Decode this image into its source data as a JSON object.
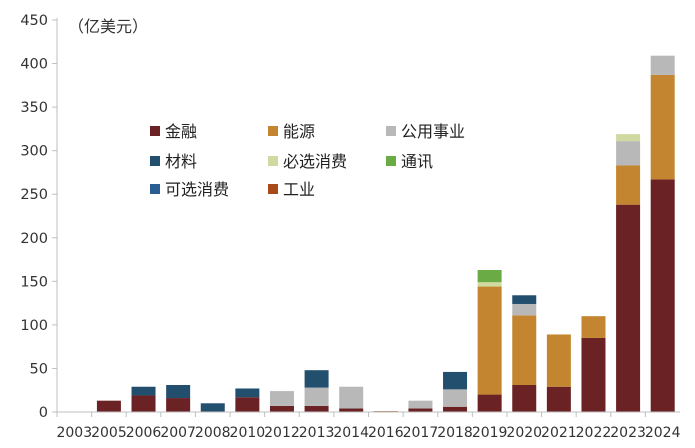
{
  "chart_data": {
    "type": "bar",
    "stacked": true,
    "unit_label": "（亿美元）",
    "categories": [
      "2003",
      "2005",
      "2006",
      "2007",
      "2008",
      "2010",
      "2012",
      "2013",
      "2014",
      "2016",
      "2017",
      "2018",
      "2019",
      "2020",
      "2021",
      "2022",
      "2023",
      "2024"
    ],
    "ylim": [
      0,
      450
    ],
    "yticks": [
      0,
      50,
      100,
      150,
      200,
      250,
      300,
      350,
      400,
      450
    ],
    "grid": false,
    "legend_position": "upper-left-inside",
    "series": [
      {
        "name": "金融",
        "color": "#6b2224",
        "values": [
          0,
          13,
          19,
          16,
          0,
          17,
          7,
          7,
          4,
          0,
          4,
          6,
          20,
          31,
          29,
          85,
          238,
          267
        ]
      },
      {
        "name": "能源",
        "color": "#c3852f",
        "values": [
          0,
          0,
          0,
          0,
          0,
          0,
          0,
          0,
          0,
          0,
          0,
          0,
          124,
          80,
          60,
          25,
          45,
          120
        ]
      },
      {
        "name": "公用事业",
        "color": "#b8b8b8",
        "values": [
          0,
          0,
          0,
          0,
          0,
          0,
          17,
          21,
          25,
          0,
          9,
          20,
          0,
          13,
          0,
          0,
          28,
          22
        ]
      },
      {
        "name": "材料",
        "color": "#234f6e",
        "values": [
          0,
          0,
          10,
          15,
          10,
          10,
          0,
          20,
          0,
          0,
          0,
          20,
          0,
          10,
          0,
          0,
          0,
          0
        ]
      },
      {
        "name": "必选消费",
        "color": "#cfd9a0",
        "values": [
          0,
          0,
          0,
          0,
          0,
          0,
          0,
          0,
          0,
          0,
          0,
          0,
          5,
          0,
          0,
          0,
          8,
          0
        ]
      },
      {
        "name": "通讯",
        "color": "#6aab45",
        "values": [
          0,
          0,
          0,
          0,
          0,
          0,
          0,
          0,
          0,
          0,
          0,
          0,
          14,
          0,
          0,
          0,
          0,
          0
        ]
      },
      {
        "name": "可选消费",
        "color": "#2a5d92",
        "values": [
          0,
          0,
          0,
          0,
          0,
          0,
          0,
          0,
          0,
          0,
          0,
          0,
          0,
          0,
          0,
          0,
          0,
          0
        ]
      },
      {
        "name": "工业",
        "color": "#a84a1a",
        "values": [
          0,
          0,
          0,
          0,
          0,
          0,
          0,
          0,
          0,
          1,
          0,
          0,
          0,
          0,
          0,
          0,
          0,
          0
        ]
      }
    ]
  }
}
